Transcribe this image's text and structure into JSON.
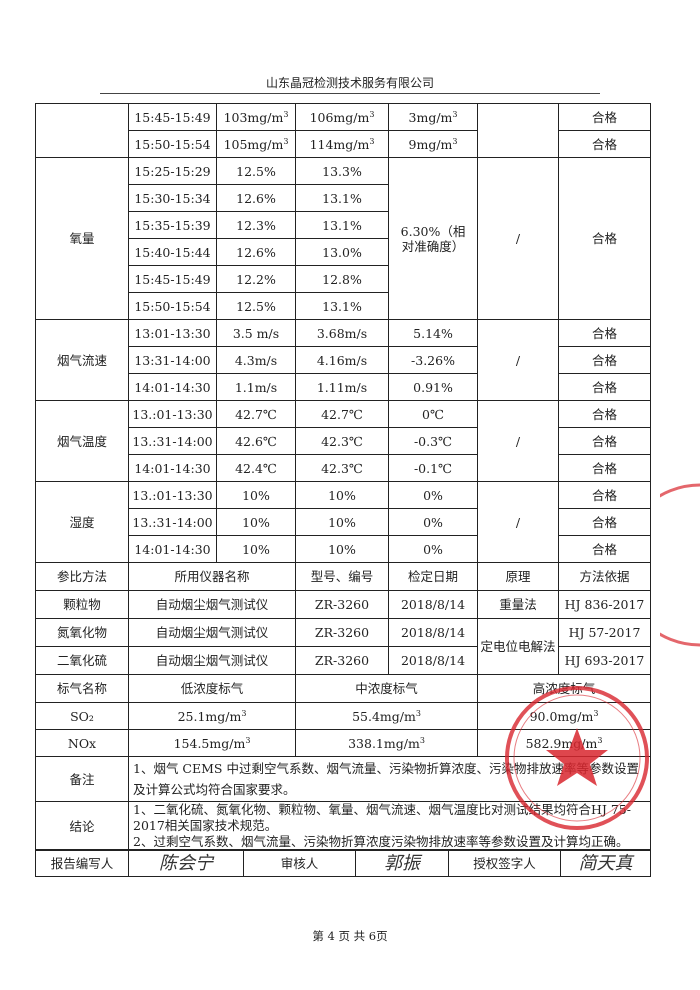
{
  "header": {
    "company": "山东晶冠检测技术服务有限公司"
  },
  "groups": [
    {
      "label": "",
      "rows": [
        {
          "time": "15:45-15:49",
          "cems": "103mg/m³",
          "ref": "106mg/m³",
          "diff": "3mg/m³",
          "result": "合格"
        },
        {
          "time": "15:50-15:54",
          "cems": "105mg/m³",
          "ref": "114mg/m³",
          "diff": "9mg/m³",
          "result": "合格"
        }
      ],
      "criterion": "",
      "merge_diff": false,
      "merge_result": false
    },
    {
      "label": "氧量",
      "rows": [
        {
          "time": "15:25-15:29",
          "cems": "12.5%",
          "ref": "13.3%"
        },
        {
          "time": "15:30-15:34",
          "cems": "12.6%",
          "ref": "13.1%"
        },
        {
          "time": "15:35-15:39",
          "cems": "12.3%",
          "ref": "13.1%"
        },
        {
          "time": "15:40-15:44",
          "cems": "12.6%",
          "ref": "13.0%"
        },
        {
          "time": "15:45-15:49",
          "cems": "12.2%",
          "ref": "12.8%"
        },
        {
          "time": "15:50-15:54",
          "cems": "12.5%",
          "ref": "13.1%"
        }
      ],
      "diff": "6.30%（相对准确度）",
      "criterion": "/",
      "result": "合格",
      "merge_diff": true,
      "merge_result": true
    },
    {
      "label": "烟气流速",
      "rows": [
        {
          "time": "13:01-13:30",
          "cems": "3.5 m/s",
          "ref": "3.68m/s",
          "diff": "5.14%",
          "result": "合格"
        },
        {
          "time": "13:31-14:00",
          "cems": "4.3m/s",
          "ref": "4.16m/s",
          "diff": "-3.26%",
          "result": "合格"
        },
        {
          "time": "14:01-14:30",
          "cems": "1.1m/s",
          "ref": "1.11m/s",
          "diff": "0.91%",
          "result": "合格"
        }
      ],
      "criterion": "/",
      "merge_diff": false,
      "merge_result": false
    },
    {
      "label": "烟气温度",
      "rows": [
        {
          "time": "13.:01-13:30",
          "cems": "42.7℃",
          "ref": "42.7℃",
          "diff": "0℃",
          "result": "合格"
        },
        {
          "time": "13.:31-14:00",
          "cems": "42.6℃",
          "ref": "42.3℃",
          "diff": "-0.3℃",
          "result": "合格"
        },
        {
          "time": "14:01-14:30",
          "cems": "42.4℃",
          "ref": "42.3℃",
          "diff": "-0.1℃",
          "result": "合格"
        }
      ],
      "criterion": "/",
      "merge_diff": false,
      "merge_result": false
    },
    {
      "label": "湿度",
      "rows": [
        {
          "time": "13.:01-13:30",
          "cems": "10%",
          "ref": "10%",
          "diff": "0%",
          "result": "合格"
        },
        {
          "time": "13.:31-14:00",
          "cems": "10%",
          "ref": "10%",
          "diff": "0%",
          "result": "合格"
        },
        {
          "time": "14:01-14:30",
          "cems": "10%",
          "ref": "10%",
          "diff": "0%",
          "result": "合格"
        }
      ],
      "criterion": "/",
      "merge_diff": false,
      "merge_result": false
    }
  ],
  "reference": {
    "headers": [
      "参比方法",
      "所用仪器名称",
      "型号、编号",
      "检定日期",
      "原理",
      "方法依据"
    ],
    "rows": [
      {
        "name": "颗粒物",
        "instrument": "自动烟尘烟气测试仪",
        "model": "ZR-3260",
        "date": "2018/8/14",
        "principle": "重量法",
        "standard": "HJ 836-2017"
      },
      {
        "name": "氮氧化物",
        "instrument": "自动烟尘烟气测试仪",
        "model": "ZR-3260",
        "date": "2018/8/14",
        "principle": "定电位电解法",
        "standard": "HJ 57-2017"
      },
      {
        "name": "二氧化硫",
        "instrument": "自动烟尘烟气测试仪",
        "model": "ZR-3260",
        "date": "2018/8/14",
        "standard": "HJ 693-2017"
      }
    ]
  },
  "standard_gas": {
    "headers": [
      "标气名称",
      "低浓度标气",
      "中浓度标气",
      "高浓度标气"
    ],
    "rows": [
      {
        "name": "SO₂",
        "low": "25.1mg/m³",
        "mid": "55.4mg/m³",
        "high": "90.0mg/m³"
      },
      {
        "name": "NOx",
        "low": "154.5mg/m³",
        "mid": "338.1mg/m³",
        "high": "582.9mg/m³"
      }
    ]
  },
  "remarks": {
    "label": "备注",
    "text": "1、烟气 CEMS 中过剩空气系数、烟气流量、污染物折算浓度、污染物排放速率等参数设置及计算公式均符合国家要求。"
  },
  "conclusion": {
    "label": "结论",
    "line1": "1、二氧化硫、氮氧化物、颗粒物、氧量、烟气流速、烟气温度比对测试结果均符合HJ 75-2017相关国家技术规范。",
    "line2": "2、过剩空气系数、烟气流量、污染物折算浓度污染物排放速率等参数设置及计算均正确。"
  },
  "signatures": {
    "author_label": "报告编写人",
    "author": "陈会宁",
    "reviewer_label": "审核人",
    "reviewer": "郭振",
    "approver_label": "授权签字人",
    "approver": "简天真"
  },
  "stamp": {
    "text": "山东晶冠检测技术服务有限公司 检验检测专用章",
    "color": "#d8262e"
  },
  "footer": {
    "page": "第 4 页 共 6页"
  }
}
